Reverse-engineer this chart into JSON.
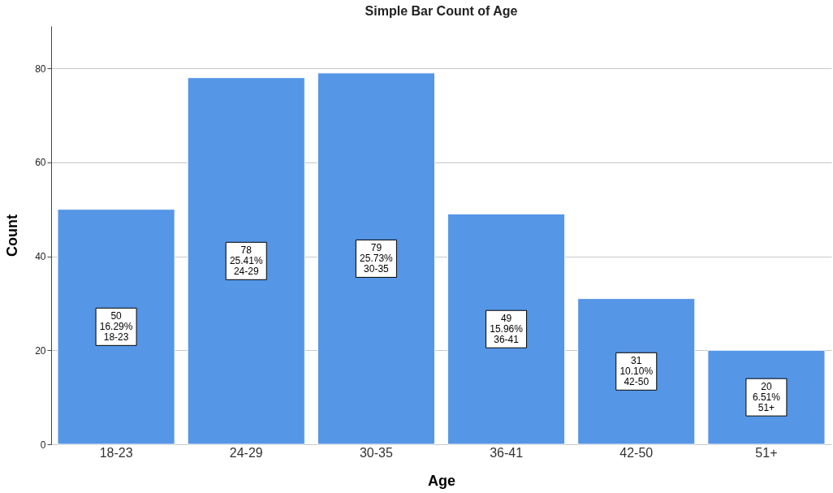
{
  "chart_data": {
    "type": "bar",
    "title": "Simple Bar Count of Age",
    "xlabel": "Age",
    "ylabel": "Count",
    "categories": [
      "18-23",
      "24-29",
      "30-35",
      "36-41",
      "42-50",
      "51+"
    ],
    "values": [
      50,
      78,
      79,
      49,
      31,
      20
    ],
    "value_labels": [
      "50\n16.29%\n18-23",
      "78\n25.41%\n24-29",
      "79\n25.73%\n30-35",
      "49\n15.96%\n36-41",
      "31\n10.10%\n42-50",
      "20\n6.51%\n51+"
    ],
    "color": "#5596e6",
    "ylim": [
      0,
      89
    ],
    "yticks": [
      0,
      20,
      40,
      60,
      80
    ],
    "grid": "y"
  }
}
